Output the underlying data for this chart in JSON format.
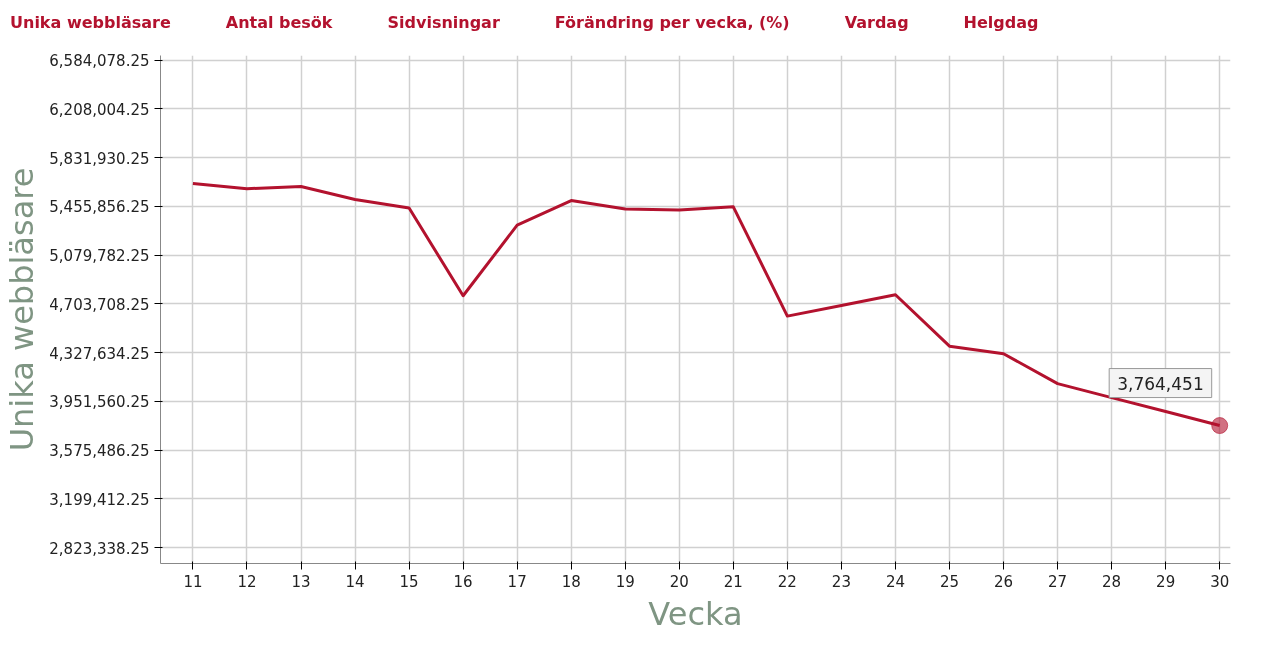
{
  "chart_data": {
    "type": "line",
    "xlabel": "Vecka",
    "ylabel": "Unika webbläsare",
    "x": [
      11,
      12,
      13,
      14,
      15,
      16,
      17,
      18,
      19,
      20,
      21,
      22,
      23,
      24,
      25,
      26,
      27,
      28,
      29,
      30
    ],
    "series": [
      {
        "color": "#b3122e",
        "values": [
          5633000,
          5592000,
          5609000,
          5509000,
          5443000,
          4766000,
          5311000,
          5501000,
          5435000,
          5427000,
          5452000,
          4609000,
          4691000,
          4774000,
          4377000,
          4319000,
          4088000,
          3980000,
          3873000,
          3764451
        ]
      }
    ],
    "xlim": [
      10.4,
      30.2
    ],
    "xticks": [
      11,
      12,
      13,
      14,
      15,
      16,
      17,
      18,
      19,
      20,
      21,
      22,
      23,
      24,
      25,
      26,
      27,
      28,
      29,
      30
    ],
    "ylim": [
      2700000,
      6620000
    ],
    "yticks": [
      {
        "value": 2823338.25,
        "label": "2,823,338.25"
      },
      {
        "value": 3199412.25,
        "label": "3,199,412.25"
      },
      {
        "value": 3575486.25,
        "label": "3,575,486.25"
      },
      {
        "value": 3951560.25,
        "label": "3,951,560.25"
      },
      {
        "value": 4327634.25,
        "label": "4,327,634.25"
      },
      {
        "value": 4703708.25,
        "label": "4,703,708.25"
      },
      {
        "value": 5079782.25,
        "label": "5,079,782.25"
      },
      {
        "value": 5455856.25,
        "label": "5,455,856.25"
      },
      {
        "value": 5831930.25,
        "label": "5,831,930.25"
      },
      {
        "value": 6208004.25,
        "label": "6,208,004.25"
      },
      {
        "value": 6584078.25,
        "label": "6,584,078.25"
      }
    ],
    "grid": true,
    "marker": "none",
    "line_style": "solid",
    "annotations": [
      "Unika webbläsare",
      "Antal besök",
      "Sidvisningar",
      "Förändring per vecka, (%)",
      "Vardag",
      "Helgdag",
      {
        "text": "3,764,451",
        "x": 30,
        "y": 3764451
      }
    ]
  }
}
